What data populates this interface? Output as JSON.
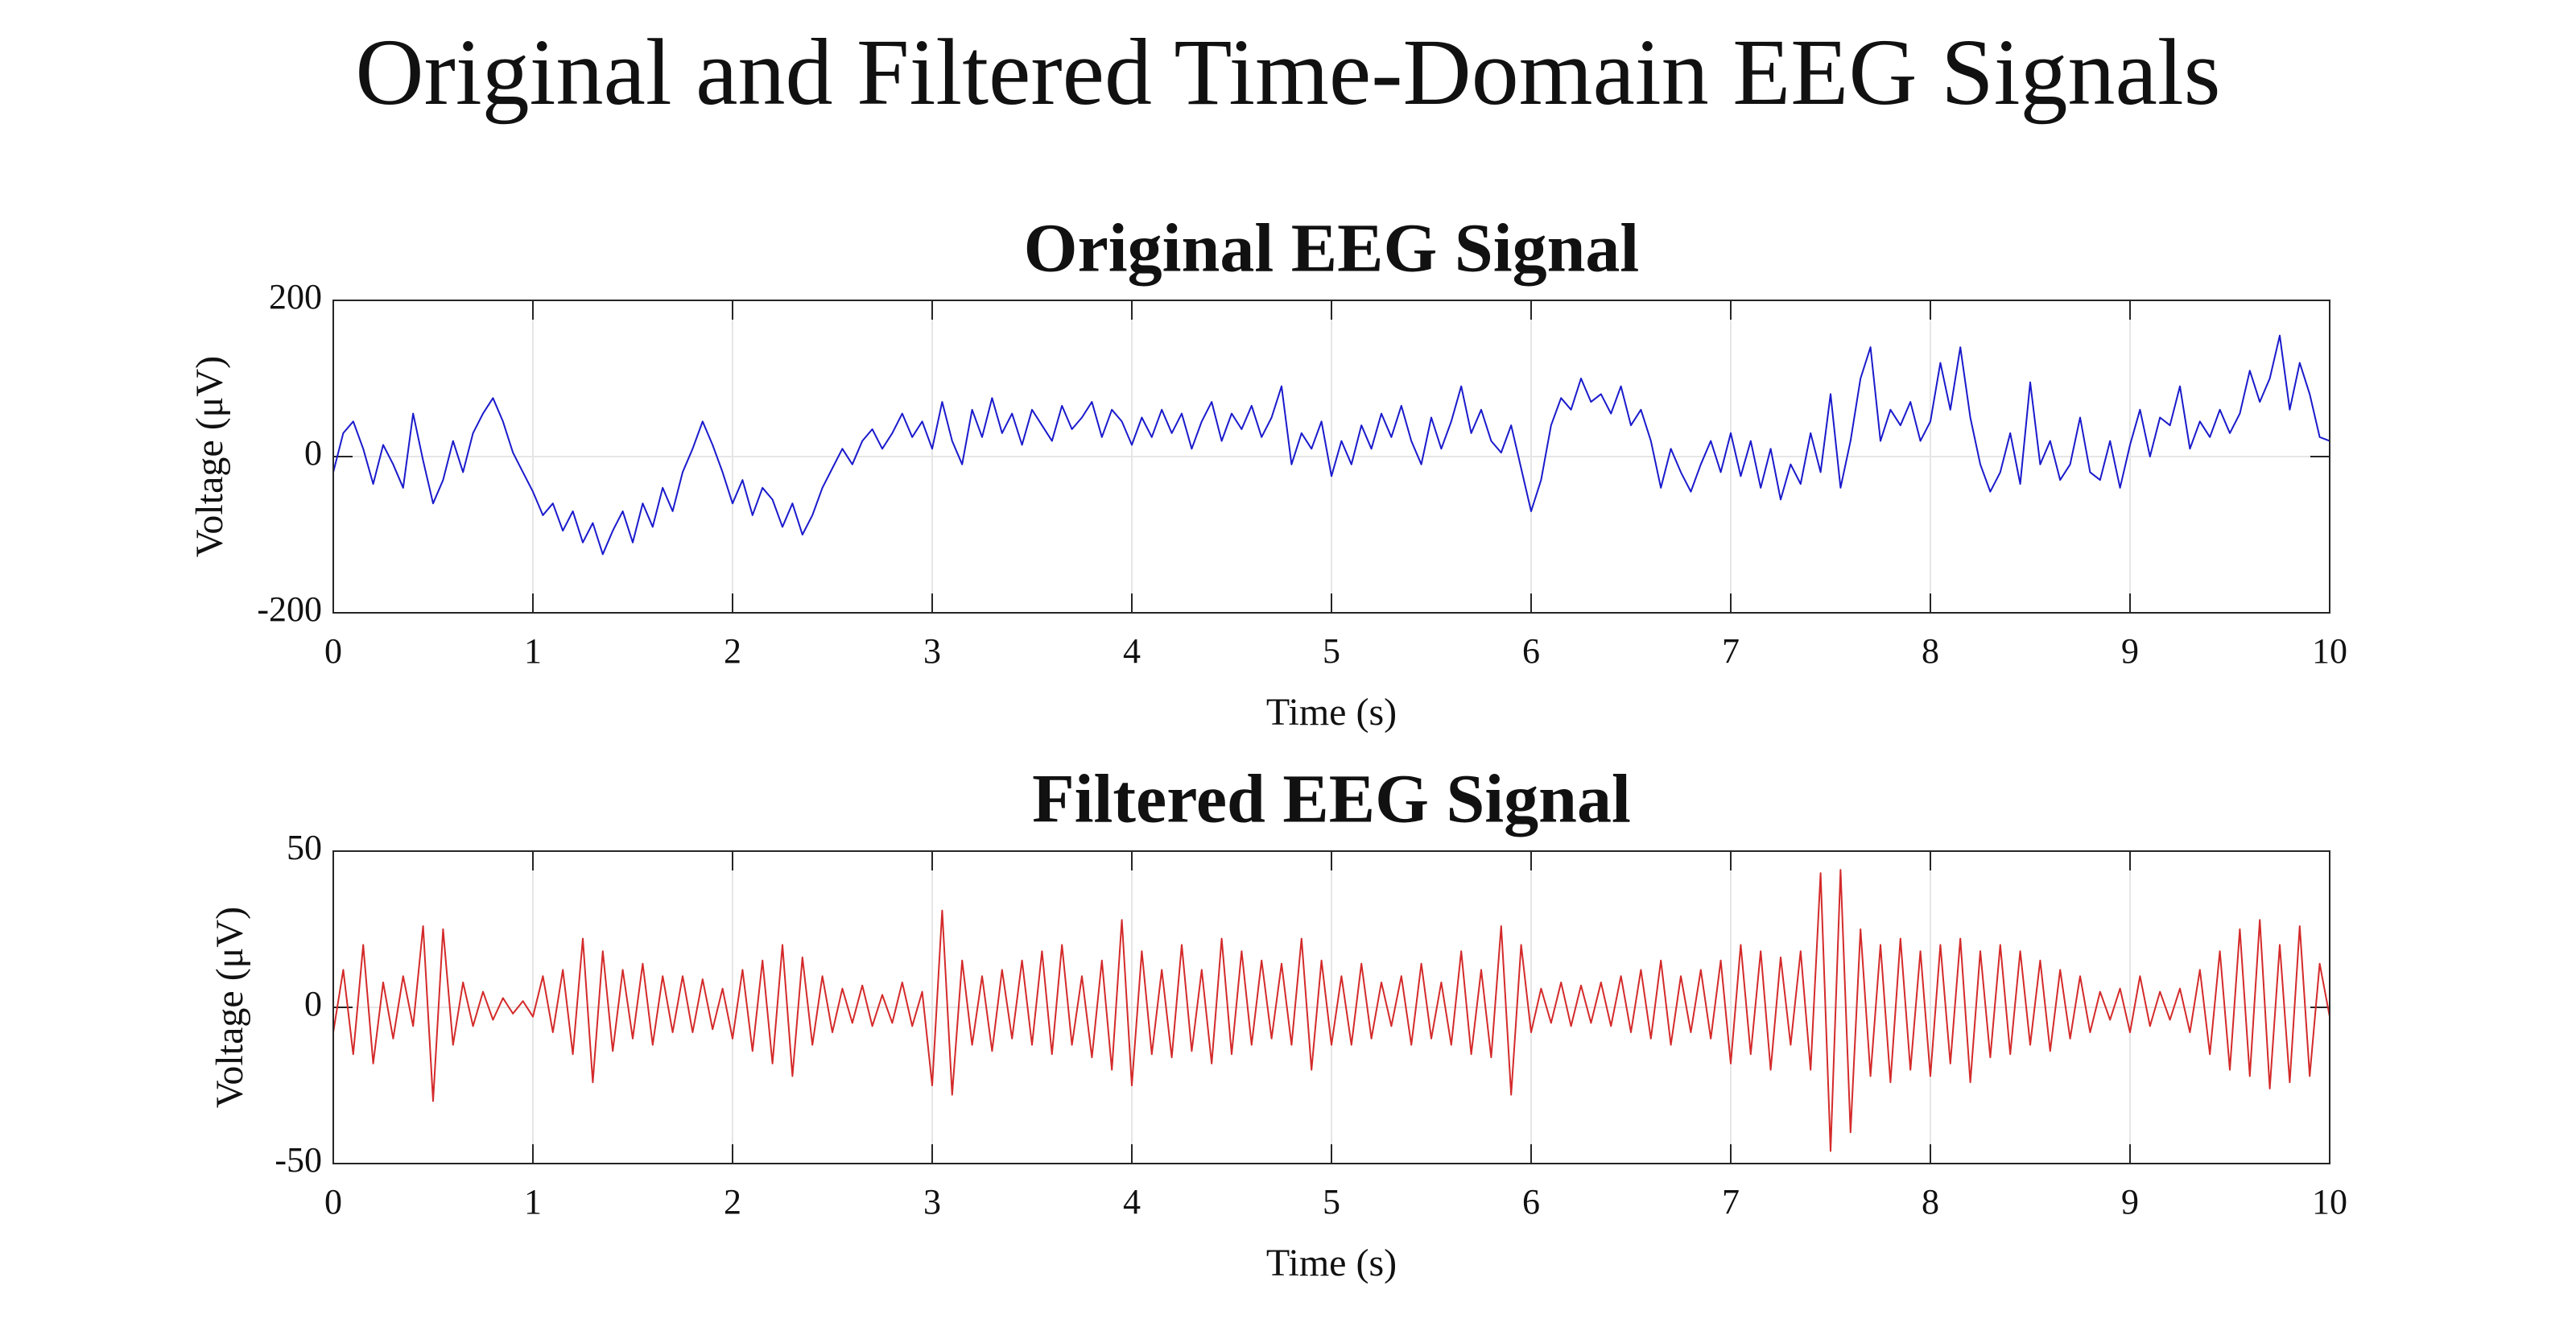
{
  "title": "Original and Filtered Time-Domain EEG Signals",
  "chart_data": [
    {
      "type": "line",
      "title": "Original EEG Signal",
      "xlabel": "Time (s)",
      "ylabel": "Voltage (μV)",
      "color": "#1a1acc",
      "xlim": [
        0,
        10
      ],
      "xticks": [
        0,
        1,
        2,
        3,
        4,
        5,
        6,
        7,
        8,
        9,
        10
      ],
      "ylim": [
        -200,
        200
      ],
      "yticks": [
        -200,
        0,
        200
      ],
      "grid": true,
      "x": [
        0,
        0.05,
        0.1,
        0.15,
        0.2,
        0.25,
        0.3,
        0.35,
        0.4,
        0.45,
        0.5,
        0.55,
        0.6,
        0.65,
        0.7,
        0.75,
        0.8,
        0.85,
        0.9,
        0.95,
        1,
        1.05,
        1.1,
        1.15,
        1.2,
        1.25,
        1.3,
        1.35,
        1.4,
        1.45,
        1.5,
        1.55,
        1.6,
        1.65,
        1.7,
        1.75,
        1.8,
        1.85,
        1.9,
        1.95,
        2,
        2.05,
        2.1,
        2.15,
        2.2,
        2.25,
        2.3,
        2.35,
        2.4,
        2.45,
        2.5,
        2.55,
        2.6,
        2.65,
        2.7,
        2.75,
        2.8,
        2.85,
        2.9,
        2.95,
        3,
        3.05,
        3.1,
        3.15,
        3.2,
        3.25,
        3.3,
        3.35,
        3.4,
        3.45,
        3.5,
        3.55,
        3.6,
        3.65,
        3.7,
        3.75,
        3.8,
        3.85,
        3.9,
        3.95,
        4,
        4.05,
        4.1,
        4.15,
        4.2,
        4.25,
        4.3,
        4.35,
        4.4,
        4.45,
        4.5,
        4.55,
        4.6,
        4.65,
        4.7,
        4.75,
        4.8,
        4.85,
        4.9,
        4.95,
        5,
        5.05,
        5.1,
        5.15,
        5.2,
        5.25,
        5.3,
        5.35,
        5.4,
        5.45,
        5.5,
        5.55,
        5.6,
        5.65,
        5.7,
        5.75,
        5.8,
        5.85,
        5.9,
        5.95,
        6,
        6.05,
        6.1,
        6.15,
        6.2,
        6.25,
        6.3,
        6.35,
        6.4,
        6.45,
        6.5,
        6.55,
        6.6,
        6.65,
        6.7,
        6.75,
        6.8,
        6.85,
        6.9,
        6.95,
        7,
        7.05,
        7.1,
        7.15,
        7.2,
        7.25,
        7.3,
        7.35,
        7.4,
        7.45,
        7.5,
        7.55,
        7.6,
        7.65,
        7.7,
        7.75,
        7.8,
        7.85,
        7.9,
        7.95,
        8,
        8.05,
        8.1,
        8.15,
        8.2,
        8.25,
        8.3,
        8.35,
        8.4,
        8.45,
        8.5,
        8.55,
        8.6,
        8.65,
        8.7,
        8.75,
        8.8,
        8.85,
        8.9,
        8.95,
        9,
        9.05,
        9.1,
        9.15,
        9.2,
        9.25,
        9.3,
        9.35,
        9.4,
        9.45,
        9.5,
        9.55,
        9.6,
        9.65,
        9.7,
        9.75,
        9.8,
        9.85,
        9.9,
        9.95,
        10
      ],
      "values": [
        -20,
        30,
        45,
        10,
        -35,
        15,
        -10,
        -40,
        55,
        -5,
        -60,
        -30,
        20,
        -20,
        30,
        55,
        75,
        45,
        5,
        -20,
        -45,
        -75,
        -60,
        -95,
        -70,
        -110,
        -85,
        -125,
        -95,
        -70,
        -110,
        -60,
        -90,
        -40,
        -70,
        -20,
        10,
        45,
        15,
        -20,
        -60,
        -30,
        -75,
        -40,
        -55,
        -90,
        -60,
        -100,
        -75,
        -40,
        -15,
        10,
        -10,
        20,
        35,
        10,
        30,
        55,
        25,
        45,
        10,
        70,
        20,
        -10,
        60,
        25,
        75,
        30,
        55,
        15,
        60,
        40,
        20,
        65,
        35,
        50,
        70,
        25,
        60,
        45,
        15,
        50,
        25,
        60,
        30,
        55,
        10,
        45,
        70,
        20,
        55,
        35,
        65,
        25,
        50,
        90,
        -10,
        30,
        10,
        45,
        -25,
        20,
        -10,
        40,
        10,
        55,
        25,
        65,
        20,
        -10,
        50,
        10,
        45,
        90,
        30,
        60,
        20,
        5,
        40,
        -15,
        -70,
        -30,
        40,
        75,
        60,
        100,
        70,
        80,
        55,
        90,
        40,
        60,
        20,
        -40,
        10,
        -20,
        -45,
        -10,
        20,
        -20,
        30,
        -25,
        20,
        -40,
        10,
        -55,
        -10,
        -35,
        30,
        -20,
        80,
        -40,
        20,
        100,
        140,
        20,
        60,
        40,
        70,
        20,
        45,
        120,
        60,
        140,
        50,
        -10,
        -45,
        -20,
        30,
        -35,
        95,
        -10,
        20,
        -30,
        -10,
        50,
        -20,
        -30,
        20,
        -40,
        15,
        60,
        0,
        50,
        40,
        90,
        10,
        45,
        25,
        60,
        30,
        55,
        110,
        70,
        100,
        155,
        60,
        120,
        80,
        25,
        20
      ]
    },
    {
      "type": "line",
      "title": "Filtered EEG Signal",
      "xlabel": "Time (s)",
      "ylabel": "Voltage (μV)",
      "color": "#d42a2a",
      "xlim": [
        0,
        10
      ],
      "xticks": [
        0,
        1,
        2,
        3,
        4,
        5,
        6,
        7,
        8,
        9,
        10
      ],
      "ylim": [
        -50,
        50
      ],
      "yticks": [
        -50,
        0,
        50
      ],
      "grid": true,
      "x": [
        0,
        0.05,
        0.1,
        0.15,
        0.2,
        0.25,
        0.3,
        0.35,
        0.4,
        0.45,
        0.5,
        0.55,
        0.6,
        0.65,
        0.7,
        0.75,
        0.8,
        0.85,
        0.9,
        0.95,
        1,
        1.05,
        1.1,
        1.15,
        1.2,
        1.25,
        1.3,
        1.35,
        1.4,
        1.45,
        1.5,
        1.55,
        1.6,
        1.65,
        1.7,
        1.75,
        1.8,
        1.85,
        1.9,
        1.95,
        2,
        2.05,
        2.1,
        2.15,
        2.2,
        2.25,
        2.3,
        2.35,
        2.4,
        2.45,
        2.5,
        2.55,
        2.6,
        2.65,
        2.7,
        2.75,
        2.8,
        2.85,
        2.9,
        2.95,
        3,
        3.05,
        3.1,
        3.15,
        3.2,
        3.25,
        3.3,
        3.35,
        3.4,
        3.45,
        3.5,
        3.55,
        3.6,
        3.65,
        3.7,
        3.75,
        3.8,
        3.85,
        3.9,
        3.95,
        4,
        4.05,
        4.1,
        4.15,
        4.2,
        4.25,
        4.3,
        4.35,
        4.4,
        4.45,
        4.5,
        4.55,
        4.6,
        4.65,
        4.7,
        4.75,
        4.8,
        4.85,
        4.9,
        4.95,
        5,
        5.05,
        5.1,
        5.15,
        5.2,
        5.25,
        5.3,
        5.35,
        5.4,
        5.45,
        5.5,
        5.55,
        5.6,
        5.65,
        5.7,
        5.75,
        5.8,
        5.85,
        5.9,
        5.95,
        6,
        6.05,
        6.1,
        6.15,
        6.2,
        6.25,
        6.3,
        6.35,
        6.4,
        6.45,
        6.5,
        6.55,
        6.6,
        6.65,
        6.7,
        6.75,
        6.8,
        6.85,
        6.9,
        6.95,
        7,
        7.05,
        7.1,
        7.15,
        7.2,
        7.25,
        7.3,
        7.35,
        7.4,
        7.45,
        7.5,
        7.55,
        7.6,
        7.65,
        7.7,
        7.75,
        7.8,
        7.85,
        7.9,
        7.95,
        8,
        8.05,
        8.1,
        8.15,
        8.2,
        8.25,
        8.3,
        8.35,
        8.4,
        8.45,
        8.5,
        8.55,
        8.6,
        8.65,
        8.7,
        8.75,
        8.8,
        8.85,
        8.9,
        8.95,
        9,
        9.05,
        9.1,
        9.15,
        9.2,
        9.25,
        9.3,
        9.35,
        9.4,
        9.45,
        9.5,
        9.55,
        9.6,
        9.65,
        9.7,
        9.75,
        9.8,
        9.85,
        9.9,
        9.95,
        10
      ],
      "values": [
        -8,
        12,
        -15,
        20,
        -18,
        8,
        -10,
        10,
        -6,
        26,
        -30,
        25,
        -12,
        8,
        -6,
        5,
        -4,
        3,
        -2,
        2,
        -3,
        10,
        -8,
        12,
        -15,
        22,
        -24,
        18,
        -14,
        12,
        -10,
        14,
        -12,
        10,
        -8,
        10,
        -8,
        9,
        -7,
        6,
        -10,
        12,
        -14,
        15,
        -18,
        20,
        -22,
        16,
        -12,
        10,
        -8,
        6,
        -5,
        7,
        -6,
        4,
        -5,
        8,
        -6,
        5,
        -25,
        31,
        -28,
        15,
        -12,
        10,
        -14,
        12,
        -10,
        15,
        -12,
        18,
        -15,
        20,
        -12,
        10,
        -16,
        15,
        -20,
        28,
        -25,
        18,
        -15,
        12,
        -16,
        20,
        -14,
        12,
        -18,
        22,
        -15,
        18,
        -12,
        15,
        -10,
        14,
        -12,
        22,
        -20,
        15,
        -12,
        10,
        -12,
        14,
        -10,
        8,
        -6,
        10,
        -12,
        14,
        -10,
        8,
        -12,
        18,
        -15,
        12,
        -16,
        26,
        -28,
        20,
        -8,
        6,
        -5,
        8,
        -6,
        7,
        -5,
        8,
        -6,
        10,
        -8,
        12,
        -10,
        15,
        -12,
        10,
        -8,
        12,
        -10,
        15,
        -18,
        20,
        -15,
        18,
        -20,
        16,
        -12,
        18,
        -20,
        43,
        -46,
        44,
        -40,
        25,
        -22,
        20,
        -24,
        22,
        -20,
        18,
        -22,
        20,
        -18,
        22,
        -24,
        18,
        -16,
        20,
        -15,
        18,
        -12,
        15,
        -14,
        12,
        -10,
        10,
        -8,
        5,
        -4,
        6,
        -8,
        10,
        -6,
        5,
        -4,
        6,
        -8,
        12,
        -15,
        18,
        -20,
        25,
        -22,
        28,
        -26,
        20,
        -24,
        26,
        -22,
        14,
        -3
      ]
    }
  ]
}
